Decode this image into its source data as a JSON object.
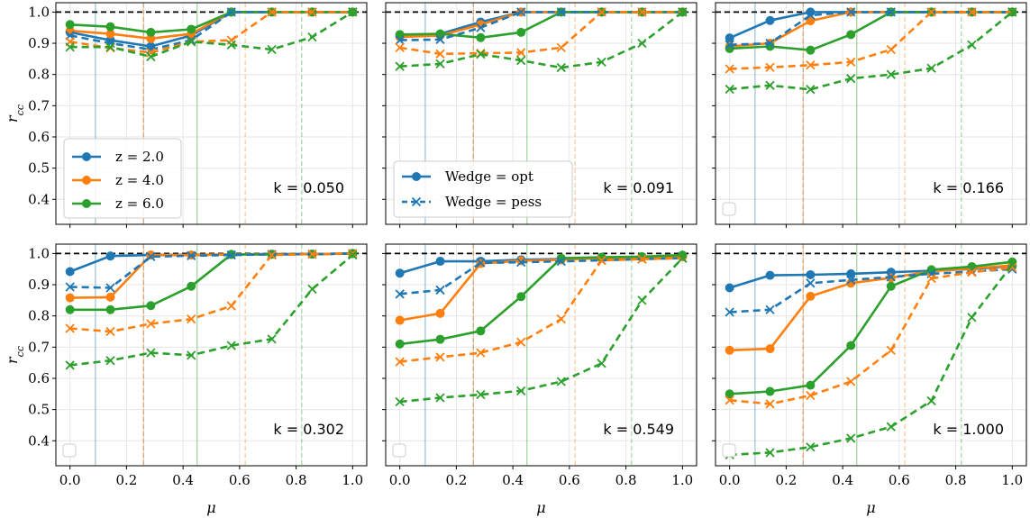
{
  "figure": {
    "ylabel": "r_cc",
    "xlabel": "μ",
    "xlim": [
      -0.05,
      1.05
    ],
    "ylim": [
      0.32,
      1.03
    ],
    "xticks": [
      "0.0",
      "0.2",
      "0.4",
      "0.6",
      "0.8",
      "1.0"
    ],
    "xtick_values": [
      0.0,
      0.2,
      0.4,
      0.6,
      0.8,
      1.0
    ],
    "yticks": [
      "0.4",
      "0.5",
      "0.6",
      "0.7",
      "0.8",
      "0.9",
      "1.0"
    ],
    "ytick_values": [
      0.4,
      0.5,
      0.6,
      0.7,
      0.8,
      0.9,
      1.0
    ],
    "grid": true,
    "reference_line_y": 1.0,
    "vlines": [
      {
        "x": 0.09,
        "color": "#1f77b4",
        "style": "solid"
      },
      {
        "x": 0.26,
        "color": "#1f77b4",
        "style": "dashed"
      },
      {
        "x": 0.26,
        "color": "#ff7f0e",
        "style": "solid"
      },
      {
        "x": 0.62,
        "color": "#ff7f0e",
        "style": "dashed"
      },
      {
        "x": 0.45,
        "color": "#2ca02c",
        "style": "solid"
      },
      {
        "x": 0.82,
        "color": "#2ca02c",
        "style": "dashed"
      }
    ],
    "colors": {
      "z2": "#1f77b4",
      "z4": "#ff7f0e",
      "z6": "#2ca02c",
      "reference": "#000000"
    }
  },
  "legends": {
    "redshift": {
      "entries": [
        {
          "label": "z = 2.0",
          "color": "#1f77b4"
        },
        {
          "label": "z = 4.0",
          "color": "#ff7f0e"
        },
        {
          "label": "z = 6.0",
          "color": "#2ca02c"
        }
      ]
    },
    "wedge": {
      "entries": [
        {
          "label": "Wedge = opt",
          "style": "solid-circle"
        },
        {
          "label": "Wedge = pess",
          "style": "dashed-x"
        }
      ]
    }
  },
  "chart_data": [
    {
      "type": "line",
      "k_label": "k = 0.050",
      "x": [
        0.0,
        0.143,
        0.286,
        0.429,
        0.571,
        0.714,
        0.857,
        1.0
      ],
      "series": [
        {
          "z": "2.0",
          "wedge": "opt",
          "values": [
            0.935,
            0.91,
            0.89,
            0.925,
            1.0,
            1.0,
            1.0,
            1.0
          ]
        },
        {
          "z": "4.0",
          "wedge": "opt",
          "values": [
            0.94,
            0.93,
            0.915,
            0.93,
            1.0,
            1.0,
            1.0,
            1.0
          ]
        },
        {
          "z": "6.0",
          "wedge": "opt",
          "values": [
            0.96,
            0.953,
            0.935,
            0.945,
            1.0,
            1.0,
            1.0,
            1.0
          ]
        },
        {
          "z": "2.0",
          "wedge": "pess",
          "values": [
            0.925,
            0.9,
            0.88,
            0.91,
            1.0,
            1.0,
            1.0,
            1.0
          ]
        },
        {
          "z": "4.0",
          "wedge": "pess",
          "values": [
            0.905,
            0.885,
            0.87,
            0.905,
            0.91,
            1.0,
            1.0,
            1.0
          ]
        },
        {
          "z": "6.0",
          "wedge": "pess",
          "values": [
            0.888,
            0.888,
            0.857,
            0.905,
            0.895,
            0.88,
            0.92,
            1.0
          ]
        }
      ]
    },
    {
      "type": "line",
      "k_label": "k = 0.091",
      "x": [
        0.0,
        0.143,
        0.286,
        0.429,
        0.571,
        0.714,
        0.857,
        1.0
      ],
      "series": [
        {
          "z": "2.0",
          "wedge": "opt",
          "values": [
            0.925,
            0.93,
            0.968,
            1.0,
            1.0,
            1.0,
            1.0,
            1.0
          ]
        },
        {
          "z": "4.0",
          "wedge": "opt",
          "values": [
            0.92,
            0.925,
            0.96,
            1.0,
            1.0,
            1.0,
            1.0,
            1.0
          ]
        },
        {
          "z": "6.0",
          "wedge": "opt",
          "values": [
            0.928,
            0.93,
            0.918,
            0.935,
            1.0,
            1.0,
            1.0,
            1.0
          ]
        },
        {
          "z": "2.0",
          "wedge": "pess",
          "values": [
            0.91,
            0.912,
            0.95,
            1.0,
            1.0,
            1.0,
            1.0,
            1.0
          ]
        },
        {
          "z": "4.0",
          "wedge": "pess",
          "values": [
            0.886,
            0.866,
            0.868,
            0.87,
            0.886,
            1.0,
            1.0,
            1.0
          ]
        },
        {
          "z": "6.0",
          "wedge": "pess",
          "values": [
            0.826,
            0.834,
            0.865,
            0.845,
            0.822,
            0.84,
            0.9,
            1.0
          ]
        }
      ]
    },
    {
      "type": "line",
      "k_label": "k = 0.166",
      "x": [
        0.0,
        0.143,
        0.286,
        0.429,
        0.571,
        0.714,
        0.857,
        1.0
      ],
      "series": [
        {
          "z": "2.0",
          "wedge": "opt",
          "values": [
            0.917,
            0.973,
            1.0,
            1.0,
            1.0,
            1.0,
            1.0,
            1.0
          ]
        },
        {
          "z": "4.0",
          "wedge": "opt",
          "values": [
            0.89,
            0.9,
            0.972,
            1.0,
            1.0,
            1.0,
            1.0,
            1.0
          ]
        },
        {
          "z": "6.0",
          "wedge": "opt",
          "values": [
            0.883,
            0.89,
            0.878,
            0.928,
            1.0,
            1.0,
            1.0,
            1.0
          ]
        },
        {
          "z": "2.0",
          "wedge": "pess",
          "values": [
            0.895,
            0.9,
            0.99,
            1.0,
            1.0,
            1.0,
            1.0,
            1.0
          ]
        },
        {
          "z": "4.0",
          "wedge": "pess",
          "values": [
            0.818,
            0.823,
            0.83,
            0.84,
            0.88,
            1.0,
            1.0,
            1.0
          ]
        },
        {
          "z": "6.0",
          "wedge": "pess",
          "values": [
            0.753,
            0.765,
            0.752,
            0.787,
            0.8,
            0.82,
            0.895,
            1.0
          ]
        }
      ]
    },
    {
      "type": "line",
      "k_label": "k = 0.302",
      "x": [
        0.0,
        0.143,
        0.286,
        0.429,
        0.571,
        0.714,
        0.857,
        1.0
      ],
      "series": [
        {
          "z": "2.0",
          "wedge": "opt",
          "values": [
            0.942,
            0.992,
            0.995,
            0.995,
            0.997,
            0.998,
            0.998,
            1.0
          ]
        },
        {
          "z": "4.0",
          "wedge": "opt",
          "values": [
            0.858,
            0.86,
            0.995,
            0.995,
            0.997,
            0.998,
            0.998,
            1.0
          ]
        },
        {
          "z": "6.0",
          "wedge": "opt",
          "values": [
            0.82,
            0.82,
            0.833,
            0.895,
            0.997,
            0.997,
            0.998,
            1.0
          ]
        },
        {
          "z": "2.0",
          "wedge": "pess",
          "values": [
            0.893,
            0.89,
            0.99,
            0.993,
            0.995,
            0.997,
            0.998,
            1.0
          ]
        },
        {
          "z": "4.0",
          "wedge": "pess",
          "values": [
            0.76,
            0.75,
            0.775,
            0.79,
            0.832,
            0.995,
            0.998,
            1.0
          ]
        },
        {
          "z": "6.0",
          "wedge": "pess",
          "values": [
            0.642,
            0.657,
            0.682,
            0.674,
            0.705,
            0.726,
            0.886,
            0.995
          ]
        }
      ]
    },
    {
      "type": "line",
      "k_label": "k = 0.549",
      "x": [
        0.0,
        0.143,
        0.286,
        0.429,
        0.571,
        0.714,
        0.857,
        1.0
      ],
      "series": [
        {
          "z": "2.0",
          "wedge": "opt",
          "values": [
            0.937,
            0.975,
            0.975,
            0.98,
            0.982,
            0.985,
            0.988,
            0.99
          ]
        },
        {
          "z": "4.0",
          "wedge": "opt",
          "values": [
            0.786,
            0.808,
            0.968,
            0.977,
            0.98,
            0.985,
            0.988,
            0.99
          ]
        },
        {
          "z": "6.0",
          "wedge": "opt",
          "values": [
            0.71,
            0.725,
            0.752,
            0.862,
            0.985,
            0.988,
            0.99,
            0.995
          ]
        },
        {
          "z": "2.0",
          "wedge": "pess",
          "values": [
            0.87,
            0.883,
            0.97,
            0.972,
            0.975,
            0.978,
            0.982,
            0.985
          ]
        },
        {
          "z": "4.0",
          "wedge": "pess",
          "values": [
            0.653,
            0.668,
            0.682,
            0.716,
            0.79,
            0.978,
            0.982,
            0.985
          ]
        },
        {
          "z": "6.0",
          "wedge": "pess",
          "values": [
            0.525,
            0.538,
            0.548,
            0.56,
            0.59,
            0.648,
            0.85,
            0.985
          ]
        }
      ]
    },
    {
      "type": "line",
      "k_label": "k = 1.000",
      "x": [
        0.0,
        0.143,
        0.286,
        0.429,
        0.571,
        0.714,
        0.857,
        1.0
      ],
      "series": [
        {
          "z": "2.0",
          "wedge": "opt",
          "values": [
            0.89,
            0.93,
            0.932,
            0.935,
            0.94,
            0.945,
            0.95,
            0.96
          ]
        },
        {
          "z": "4.0",
          "wedge": "opt",
          "values": [
            0.69,
            0.695,
            0.863,
            0.905,
            0.922,
            0.943,
            0.952,
            0.962
          ]
        },
        {
          "z": "6.0",
          "wedge": "opt",
          "values": [
            0.55,
            0.558,
            0.578,
            0.705,
            0.895,
            0.948,
            0.958,
            0.973
          ]
        },
        {
          "z": "2.0",
          "wedge": "pess",
          "values": [
            0.812,
            0.82,
            0.905,
            0.915,
            0.925,
            0.935,
            0.942,
            0.95
          ]
        },
        {
          "z": "4.0",
          "wedge": "pess",
          "values": [
            0.53,
            0.518,
            0.545,
            0.59,
            0.69,
            0.92,
            0.94,
            0.955
          ]
        },
        {
          "z": "6.0",
          "wedge": "pess",
          "values": [
            0.355,
            0.362,
            0.38,
            0.408,
            0.445,
            0.528,
            0.795,
            0.965
          ]
        }
      ]
    }
  ]
}
